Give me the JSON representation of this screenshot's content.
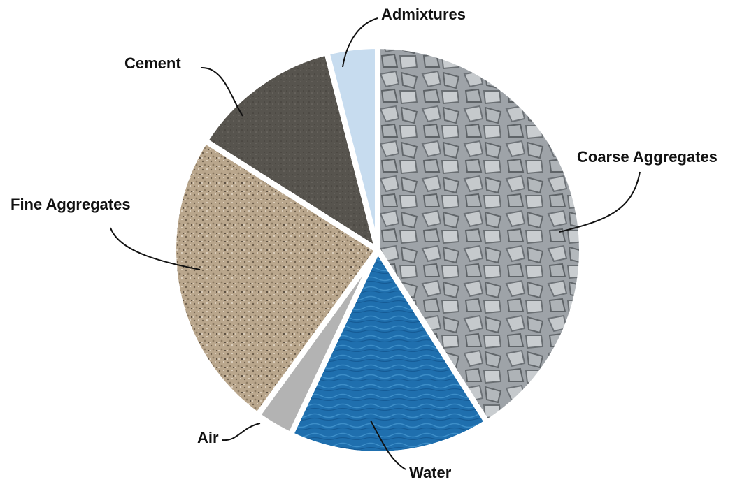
{
  "chart_data": {
    "type": "pie",
    "categories": [
      "Coarse Aggregates",
      "Water",
      "Air",
      "Fine Aggregates",
      "Cement",
      "Admixtures"
    ],
    "values": [
      41,
      16,
      3,
      24,
      12,
      4
    ],
    "colors": [
      "#9ea3a8",
      "#1f6fae",
      "#b3b3b3",
      "#b9a68c",
      "#57544e",
      "#c7dcef"
    ]
  }
}
